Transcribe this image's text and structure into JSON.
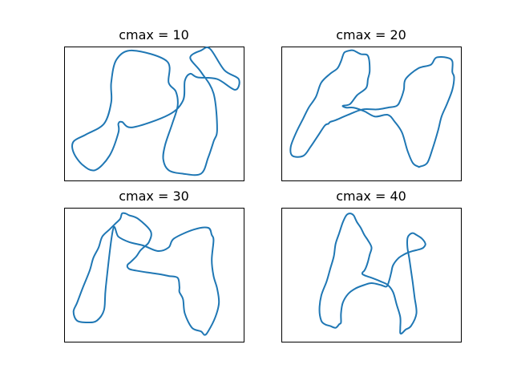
{
  "chart_data": [
    {
      "type": "line",
      "title": "cmax = 10",
      "xlabel": "",
      "ylabel": "",
      "grid": false,
      "ticks": false,
      "color": "#1f77b4",
      "xlim": [
        0,
        100
      ],
      "ylim": [
        0,
        75
      ],
      "series": [
        {
          "x": [
            30,
            25,
            17,
            10,
            5,
            5,
            12,
            22,
            26,
            26,
            29,
            38,
            57,
            58,
            62,
            63,
            60,
            56,
            55,
            58,
            66,
            76,
            80,
            83,
            85,
            83,
            76,
            70,
            76,
            81,
            89,
            97,
            95,
            85,
            74,
            70,
            67,
            66,
            58,
            38,
            32,
            30,
            30
          ],
          "y": [
            27,
            14,
            6,
            9,
            16,
            22,
            26,
            32,
            44,
            55,
            68,
            73,
            67,
            55,
            50,
            42,
            32,
            20,
            12,
            6,
            4,
            4,
            13,
            22,
            29,
            49,
            61,
            69,
            73,
            74,
            62,
            57,
            51,
            57,
            58,
            60,
            56,
            45,
            37,
            30,
            33,
            32,
            27
          ]
        }
      ]
    },
    {
      "type": "line",
      "title": "cmax = 20",
      "xlabel": "",
      "ylabel": "",
      "grid": false,
      "ticks": false,
      "color": "#1f77b4",
      "xlim": [
        0,
        100
      ],
      "ylim": [
        0,
        75
      ],
      "series": [
        {
          "x": [
            26,
            24,
            20,
            16,
            12,
            6,
            5,
            8,
            12,
            15,
            19,
            22,
            27,
            31,
            33,
            34,
            35,
            38,
            40,
            44,
            48,
            49,
            48,
            47,
            42,
            38,
            34,
            36,
            40,
            46,
            52,
            59,
            63,
            67,
            70,
            73,
            76,
            77,
            81,
            84,
            87,
            89,
            92,
            95,
            96,
            95,
            95,
            92,
            86,
            83,
            76,
            69,
            68,
            66,
            64,
            59,
            53,
            45,
            37,
            30,
            27,
            26
          ],
          "y": [
            32,
            31,
            25,
            19,
            14,
            14,
            19,
            27,
            35,
            41,
            47,
            55,
            60,
            63,
            67,
            70,
            72,
            73,
            73,
            71,
            70,
            62,
            57,
            52,
            48,
            43,
            42,
            41,
            41,
            39,
            36,
            37,
            33,
            27,
            17,
            10,
            8,
            8,
            10,
            18,
            28,
            36,
            43,
            51,
            58,
            61,
            67,
            69,
            69,
            65,
            63,
            57,
            51,
            45,
            42,
            41,
            40,
            40,
            37,
            34,
            33,
            32
          ]
        }
      ]
    },
    {
      "type": "line",
      "title": "cmax = 30",
      "xlabel": "",
      "ylabel": "",
      "grid": false,
      "ticks": false,
      "color": "#1f77b4",
      "xlim": [
        0,
        100
      ],
      "ylim": [
        0,
        75
      ],
      "series": [
        {
          "x": [
            23,
            22,
            18,
            13,
            7,
            5,
            7,
            10,
            14,
            16,
            19,
            21,
            25,
            28,
            31,
            32,
            34,
            36,
            41,
            48,
            47,
            44,
            42,
            40,
            37,
            35,
            36,
            40,
            46,
            53,
            58,
            63,
            64,
            64,
            66,
            67,
            71,
            76,
            78,
            80,
            84,
            86,
            85,
            83,
            82,
            83,
            82,
            80,
            72,
            61,
            58,
            52,
            44,
            36,
            30,
            27,
            23
          ],
          "y": [
            31,
            18,
            12,
            11,
            12,
            17,
            22,
            30,
            40,
            47,
            53,
            59,
            63,
            66,
            69,
            72,
            72,
            71,
            69,
            62,
            56,
            53,
            51,
            48,
            45,
            43,
            41,
            40,
            39,
            38,
            37,
            36,
            31,
            28,
            24,
            16,
            8,
            6,
            4,
            6,
            14,
            22,
            30,
            37,
            46,
            57,
            60,
            64,
            63,
            58,
            53,
            51,
            54,
            56,
            59,
            63,
            31
          ]
        }
      ]
    },
    {
      "type": "line",
      "title": "cmax = 40",
      "xlabel": "",
      "ylabel": "",
      "grid": false,
      "ticks": false,
      "color": "#1f77b4",
      "xlim": [
        0,
        100
      ],
      "ylim": [
        0,
        75
      ],
      "series": [
        {
          "x": [
            32,
            30,
            27,
            24,
            22,
            21,
            22,
            25,
            27,
            29,
            30,
            32,
            34,
            36,
            38,
            40,
            41,
            42,
            44,
            46,
            48,
            50,
            49,
            48,
            47,
            46,
            45,
            45,
            47,
            50,
            55,
            59,
            62,
            64,
            66,
            66,
            66,
            67,
            69,
            72,
            75,
            74,
            73,
            72,
            71,
            70,
            70,
            71,
            73,
            75,
            78,
            80,
            79,
            77,
            73,
            70,
            68,
            65,
            62,
            61,
            60,
            59,
            58,
            55,
            50,
            46,
            41,
            37,
            34,
            33,
            33,
            32
          ],
          "y": [
            10,
            8,
            9,
            10,
            12,
            18,
            26,
            34,
            41,
            48,
            55,
            61,
            67,
            71,
            72,
            71,
            69,
            67,
            64,
            60,
            57,
            53,
            49,
            45,
            42,
            40,
            39,
            38,
            37,
            36,
            34,
            32,
            28,
            21,
            14,
            8,
            5,
            5,
            7,
            9,
            16,
            25,
            33,
            40,
            47,
            53,
            58,
            60,
            61,
            60,
            58,
            55,
            53,
            52,
            51,
            50,
            49,
            47,
            43,
            39,
            35,
            32,
            31,
            32,
            33,
            32,
            30,
            27,
            22,
            16,
            11,
            10
          ]
        }
      ]
    }
  ]
}
